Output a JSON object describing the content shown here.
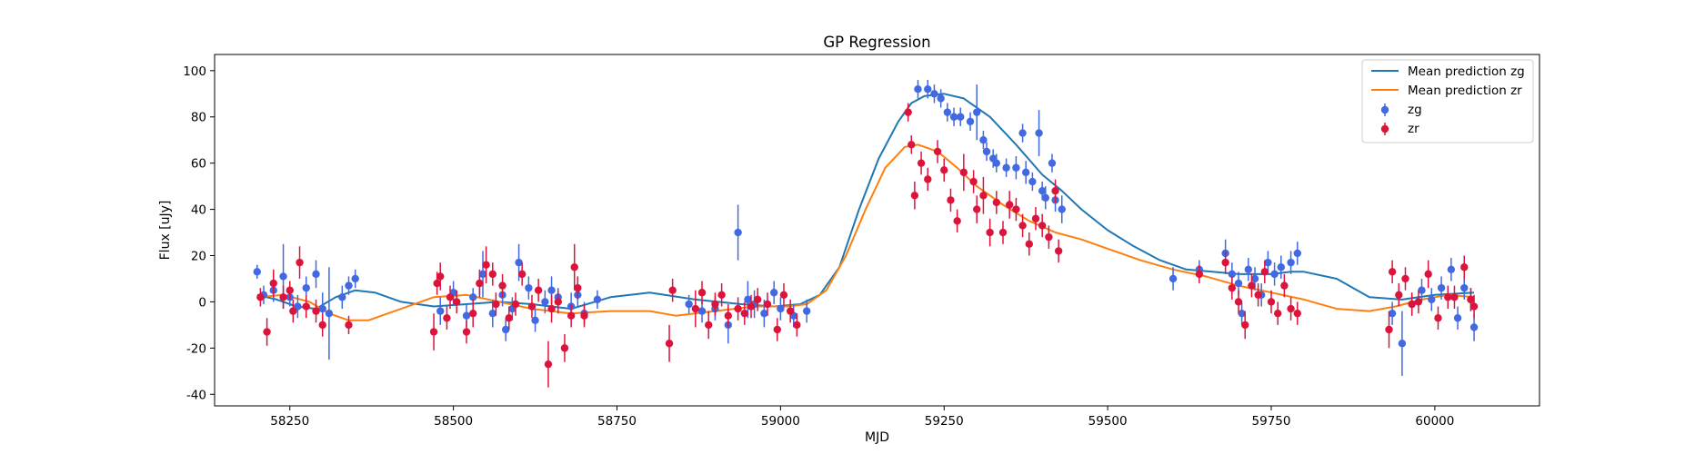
{
  "chart_data": {
    "type": "scatter",
    "title": "GP Regression",
    "xlabel": "MJD",
    "ylabel": "Flux [uJy]",
    "xlim": [
      58135,
      60160
    ],
    "ylim": [
      -45,
      107
    ],
    "xticks": [
      58250,
      58500,
      58750,
      59000,
      59250,
      59500,
      59750,
      60000
    ],
    "yticks": [
      -40,
      -20,
      0,
      20,
      40,
      60,
      80,
      100
    ],
    "legend_position": "upper right",
    "grid": false,
    "colors": {
      "mean_zg": "#1f77b4",
      "mean_zr": "#ff7f0e",
      "obs_zg": "#4169e1",
      "obs_zr": "#dc143c"
    },
    "lines": [
      {
        "name": "Mean prediction zg",
        "x": [
          58200,
          58230,
          58260,
          58290,
          58320,
          58350,
          58380,
          58420,
          58470,
          58520,
          58570,
          58620,
          58680,
          58740,
          58800,
          58870,
          58940,
          58990,
          59030,
          59060,
          59090,
          59120,
          59150,
          59180,
          59200,
          59220,
          59250,
          59280,
          59320,
          59360,
          59400,
          59430,
          59460,
          59500,
          59540,
          59580,
          59620,
          59660,
          59700,
          59750,
          59780,
          59800,
          59850,
          59900,
          59950,
          60000,
          60060
        ],
        "y": [
          3,
          1,
          -2,
          -3,
          2,
          5,
          4,
          0,
          -2,
          -1,
          0,
          -1,
          -3,
          2,
          4,
          1,
          -1,
          -2,
          -1,
          3,
          15,
          40,
          62,
          78,
          86,
          89,
          90,
          88,
          80,
          68,
          55,
          48,
          40,
          31,
          24,
          18,
          14,
          13,
          12,
          12,
          13,
          13,
          10,
          2,
          1,
          3,
          4
        ]
      },
      {
        "name": "Mean prediction zr",
        "x": [
          58200,
          58240,
          58280,
          58310,
          58340,
          58370,
          58420,
          58470,
          58520,
          58570,
          58620,
          58680,
          58740,
          58800,
          58840,
          58900,
          58960,
          59010,
          59040,
          59070,
          59100,
          59130,
          59160,
          59190,
          59210,
          59240,
          59270,
          59300,
          59340,
          59380,
          59420,
          59460,
          59500,
          59550,
          59600,
          59650,
          59700,
          59750,
          59800,
          59850,
          59900,
          59940,
          59980,
          60020,
          60060
        ],
        "y": [
          2,
          3,
          0,
          -5,
          -8,
          -8,
          -3,
          2,
          3,
          0,
          -3,
          -5,
          -4,
          -4,
          -6,
          -4,
          -2,
          -2,
          -1,
          5,
          20,
          40,
          58,
          67,
          68,
          65,
          58,
          50,
          42,
          35,
          30,
          27,
          23,
          18,
          14,
          11,
          7,
          4,
          1,
          -3,
          -4,
          -2,
          1,
          3,
          2
        ]
      }
    ],
    "series": [
      {
        "name": "zg",
        "points": [
          [
            58200,
            13,
            3
          ],
          [
            58210,
            3,
            4
          ],
          [
            58225,
            5,
            5
          ],
          [
            58240,
            11,
            14
          ],
          [
            58250,
            2,
            4
          ],
          [
            58262,
            -2,
            5
          ],
          [
            58275,
            6,
            5
          ],
          [
            58290,
            12,
            6
          ],
          [
            58300,
            -3,
            7
          ],
          [
            58310,
            -5,
            20
          ],
          [
            58330,
            2,
            5
          ],
          [
            58340,
            7,
            4
          ],
          [
            58350,
            10,
            4
          ],
          [
            58480,
            -4,
            6
          ],
          [
            58500,
            4,
            5
          ],
          [
            58520,
            -6,
            5
          ],
          [
            58530,
            2,
            4
          ],
          [
            58540,
            8,
            5
          ],
          [
            58545,
            12,
            10
          ],
          [
            58560,
            -5,
            6
          ],
          [
            58575,
            3,
            5
          ],
          [
            58580,
            -12,
            5
          ],
          [
            58590,
            -3,
            5
          ],
          [
            58600,
            17,
            8
          ],
          [
            58615,
            6,
            5
          ],
          [
            58625,
            -8,
            5
          ],
          [
            58640,
            0,
            5
          ],
          [
            58650,
            5,
            6
          ],
          [
            58660,
            2,
            4
          ],
          [
            58680,
            -2,
            6
          ],
          [
            58690,
            3,
            5
          ],
          [
            58700,
            -5,
            5
          ],
          [
            58720,
            1,
            4
          ],
          [
            58860,
            -1,
            4
          ],
          [
            58880,
            -4,
            5
          ],
          [
            58900,
            -3,
            5
          ],
          [
            58920,
            -10,
            8
          ],
          [
            58935,
            30,
            12
          ],
          [
            58950,
            1,
            8
          ],
          [
            58960,
            -1,
            6
          ],
          [
            58975,
            -5,
            6
          ],
          [
            58990,
            4,
            5
          ],
          [
            59000,
            -3,
            5
          ],
          [
            59020,
            -6,
            5
          ],
          [
            59040,
            -4,
            5
          ],
          [
            59210,
            92,
            4
          ],
          [
            59225,
            92,
            4
          ],
          [
            59235,
            90,
            4
          ],
          [
            59245,
            88,
            4
          ],
          [
            59255,
            82,
            4
          ],
          [
            59265,
            80,
            4
          ],
          [
            59275,
            80,
            4
          ],
          [
            59290,
            78,
            4
          ],
          [
            59300,
            82,
            12
          ],
          [
            59310,
            70,
            4
          ],
          [
            59315,
            65,
            4
          ],
          [
            59325,
            62,
            4
          ],
          [
            59330,
            60,
            4
          ],
          [
            59345,
            58,
            4
          ],
          [
            59360,
            58,
            5
          ],
          [
            59370,
            73,
            4
          ],
          [
            59375,
            56,
            5
          ],
          [
            59385,
            52,
            4
          ],
          [
            59395,
            73,
            10
          ],
          [
            59400,
            48,
            4
          ],
          [
            59405,
            45,
            5
          ],
          [
            59415,
            60,
            4
          ],
          [
            59420,
            44,
            5
          ],
          [
            59430,
            40,
            6
          ],
          [
            59600,
            10,
            5
          ],
          [
            59640,
            14,
            4
          ],
          [
            59680,
            21,
            6
          ],
          [
            59690,
            12,
            5
          ],
          [
            59700,
            8,
            5
          ],
          [
            59705,
            -5,
            5
          ],
          [
            59715,
            14,
            5
          ],
          [
            59725,
            10,
            5
          ],
          [
            59735,
            3,
            5
          ],
          [
            59745,
            17,
            5
          ],
          [
            59755,
            12,
            5
          ],
          [
            59765,
            15,
            5
          ],
          [
            59780,
            17,
            5
          ],
          [
            59790,
            21,
            5
          ],
          [
            59935,
            -5,
            5
          ],
          [
            59950,
            -18,
            14
          ],
          [
            59965,
            -1,
            5
          ],
          [
            59980,
            5,
            5
          ],
          [
            59995,
            1,
            5
          ],
          [
            60010,
            6,
            5
          ],
          [
            60025,
            14,
            5
          ],
          [
            60035,
            -7,
            5
          ],
          [
            60045,
            6,
            5
          ],
          [
            60055,
            1,
            5
          ],
          [
            60060,
            -11,
            6
          ]
        ]
      },
      {
        "name": "zr",
        "points": [
          [
            58205,
            2,
            4
          ],
          [
            58215,
            -13,
            6
          ],
          [
            58225,
            8,
            6
          ],
          [
            58240,
            2,
            5
          ],
          [
            58250,
            5,
            4
          ],
          [
            58255,
            -4,
            5
          ],
          [
            58265,
            17,
            7
          ],
          [
            58275,
            -2,
            5
          ],
          [
            58290,
            -4,
            5
          ],
          [
            58300,
            -10,
            5
          ],
          [
            58340,
            -10,
            4
          ],
          [
            58470,
            -13,
            8
          ],
          [
            58475,
            8,
            5
          ],
          [
            58480,
            11,
            6
          ],
          [
            58490,
            -7,
            5
          ],
          [
            58495,
            2,
            5
          ],
          [
            58505,
            0,
            5
          ],
          [
            58520,
            -13,
            5
          ],
          [
            58530,
            -5,
            6
          ],
          [
            58540,
            8,
            6
          ],
          [
            58550,
            16,
            8
          ],
          [
            58560,
            12,
            5
          ],
          [
            58565,
            -1,
            5
          ],
          [
            58575,
            7,
            5
          ],
          [
            58585,
            -7,
            5
          ],
          [
            58595,
            -1,
            5
          ],
          [
            58605,
            12,
            5
          ],
          [
            58620,
            -2,
            5
          ],
          [
            58630,
            5,
            5
          ],
          [
            58645,
            -27,
            10
          ],
          [
            58650,
            -3,
            6
          ],
          [
            58660,
            0,
            5
          ],
          [
            58670,
            -20,
            6
          ],
          [
            58680,
            -6,
            5
          ],
          [
            58685,
            15,
            10
          ],
          [
            58690,
            6,
            5
          ],
          [
            58700,
            -6,
            5
          ],
          [
            58830,
            -18,
            8
          ],
          [
            58835,
            5,
            5
          ],
          [
            58870,
            -3,
            8
          ],
          [
            58880,
            4,
            5
          ],
          [
            58890,
            -10,
            6
          ],
          [
            58900,
            -1,
            5
          ],
          [
            58910,
            3,
            5
          ],
          [
            58920,
            -6,
            5
          ],
          [
            58935,
            -3,
            5
          ],
          [
            58945,
            -5,
            5
          ],
          [
            58955,
            -2,
            5
          ],
          [
            58965,
            1,
            5
          ],
          [
            58980,
            -1,
            5
          ],
          [
            58995,
            -12,
            5
          ],
          [
            59005,
            3,
            5
          ],
          [
            59015,
            -4,
            5
          ],
          [
            59025,
            -10,
            5
          ],
          [
            59195,
            82,
            4
          ],
          [
            59200,
            68,
            4
          ],
          [
            59205,
            46,
            6
          ],
          [
            59215,
            60,
            5
          ],
          [
            59225,
            53,
            5
          ],
          [
            59240,
            65,
            5
          ],
          [
            59250,
            57,
            5
          ],
          [
            59260,
            44,
            5
          ],
          [
            59270,
            35,
            5
          ],
          [
            59280,
            56,
            8
          ],
          [
            59295,
            52,
            5
          ],
          [
            59300,
            40,
            6
          ],
          [
            59310,
            46,
            8
          ],
          [
            59320,
            30,
            6
          ],
          [
            59330,
            43,
            5
          ],
          [
            59340,
            30,
            5
          ],
          [
            59350,
            42,
            6
          ],
          [
            59360,
            40,
            5
          ],
          [
            59370,
            33,
            5
          ],
          [
            59380,
            25,
            5
          ],
          [
            59390,
            36,
            5
          ],
          [
            59400,
            33,
            5
          ],
          [
            59410,
            28,
            5
          ],
          [
            59420,
            48,
            5
          ],
          [
            59425,
            22,
            5
          ],
          [
            59640,
            12,
            4
          ],
          [
            59680,
            17,
            5
          ],
          [
            59690,
            6,
            5
          ],
          [
            59700,
            0,
            5
          ],
          [
            59710,
            -10,
            6
          ],
          [
            59720,
            7,
            5
          ],
          [
            59730,
            3,
            5
          ],
          [
            59740,
            13,
            5
          ],
          [
            59750,
            0,
            5
          ],
          [
            59760,
            -5,
            5
          ],
          [
            59770,
            7,
            5
          ],
          [
            59780,
            -3,
            5
          ],
          [
            59790,
            -5,
            5
          ],
          [
            59930,
            -12,
            8
          ],
          [
            59935,
            13,
            5
          ],
          [
            59945,
            3,
            5
          ],
          [
            59955,
            10,
            5
          ],
          [
            59965,
            -1,
            5
          ],
          [
            59975,
            0,
            5
          ],
          [
            59990,
            12,
            6
          ],
          [
            60005,
            -7,
            5
          ],
          [
            60020,
            2,
            5
          ],
          [
            60030,
            2,
            5
          ],
          [
            60045,
            15,
            5
          ],
          [
            60055,
            1,
            5
          ],
          [
            60060,
            -2,
            5
          ]
        ]
      }
    ]
  }
}
